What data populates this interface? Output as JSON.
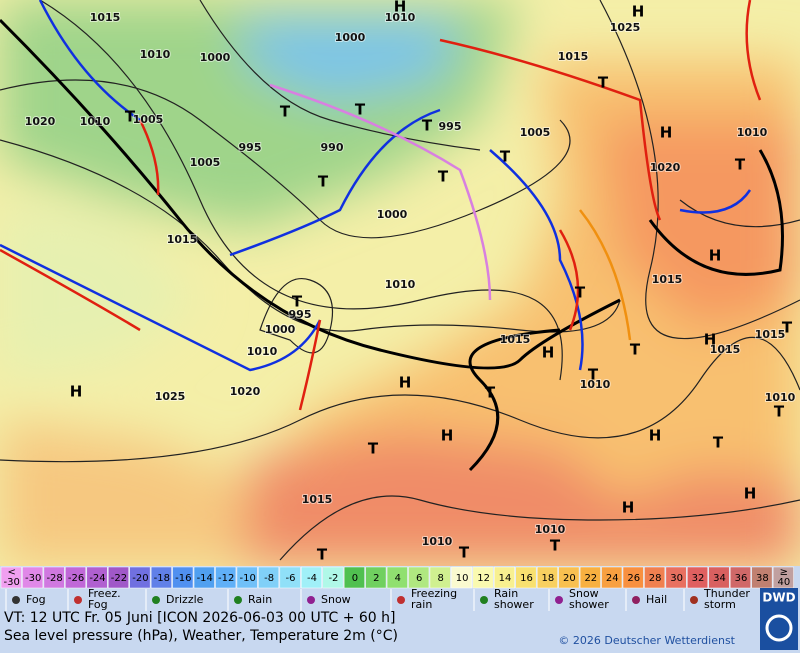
{
  "map": {
    "pressure_labels": [
      "1015",
      "1010",
      "1000",
      "1000",
      "1010",
      "1020",
      "1010",
      "1005",
      "995",
      "990",
      "1005",
      "995",
      "1005",
      "1000",
      "1015",
      "1010",
      "995",
      "1000",
      "1010",
      "1020",
      "1025",
      "1015",
      "1010",
      "1020",
      "1015",
      "1015",
      "1015",
      "1010",
      "1010",
      "1015",
      "1025",
      "1015",
      "1010",
      "1010"
    ],
    "centers": [
      "H",
      "H",
      "H",
      "H",
      "H",
      "H",
      "H",
      "H",
      "H",
      "H",
      "H",
      "H",
      "T",
      "T",
      "T",
      "T",
      "T",
      "T",
      "T",
      "T",
      "T",
      "T",
      "T",
      "T",
      "T",
      "T",
      "T",
      "T",
      "T",
      "T",
      "T",
      "T",
      "T"
    ]
  },
  "scale": {
    "values": [
      "< -30",
      -30,
      -28,
      -26,
      -24,
      -22,
      -20,
      -18,
      -16,
      -14,
      -12,
      -10,
      -8,
      -6,
      -4,
      -2,
      0,
      2,
      4,
      6,
      8,
      10,
      12,
      14,
      16,
      18,
      20,
      22,
      24,
      26,
      28,
      30,
      32,
      34,
      36,
      38,
      "≥ 40"
    ]
  },
  "legend": {
    "items": [
      "Fog",
      "Freez. Fog",
      "Drizzle",
      "Rain",
      "Snow",
      "Freezing rain",
      "Rain shower",
      "Snow shower",
      "Hail",
      "Thunder storm"
    ]
  },
  "footer": {
    "valid_time": "VT: 12 UTC Fr.  05 Juni [ICON 2026-06-03  00 UTC + 60 h]",
    "description": "Sea level pressure (hPa), Weather, Temperature 2m (°C)",
    "copyright": "© 2026 Deutscher Wetterdienst",
    "logo": "DWD"
  }
}
